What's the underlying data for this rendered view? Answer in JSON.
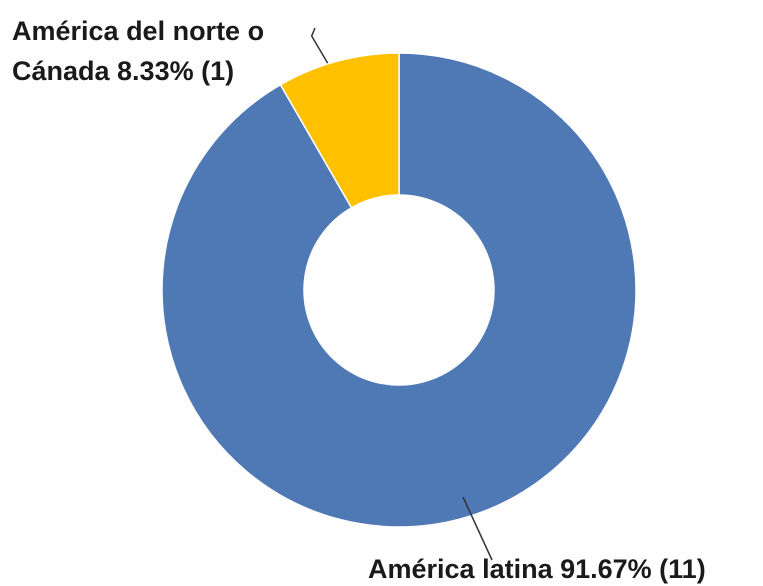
{
  "chart_data": {
    "type": "pie",
    "donut": true,
    "slices": [
      {
        "name": "América latina",
        "value": 11,
        "percent": "91.67%",
        "color": "#4E79B5",
        "label_lines": [
          "América latina 91.67% (11)"
        ]
      },
      {
        "name": "América del norte o Cánada",
        "value": 1,
        "percent": "8.33%",
        "color": "#FFC000",
        "label_lines": [
          "América del norte o",
          "Cánada 8.33% (1)"
        ]
      }
    ]
  }
}
